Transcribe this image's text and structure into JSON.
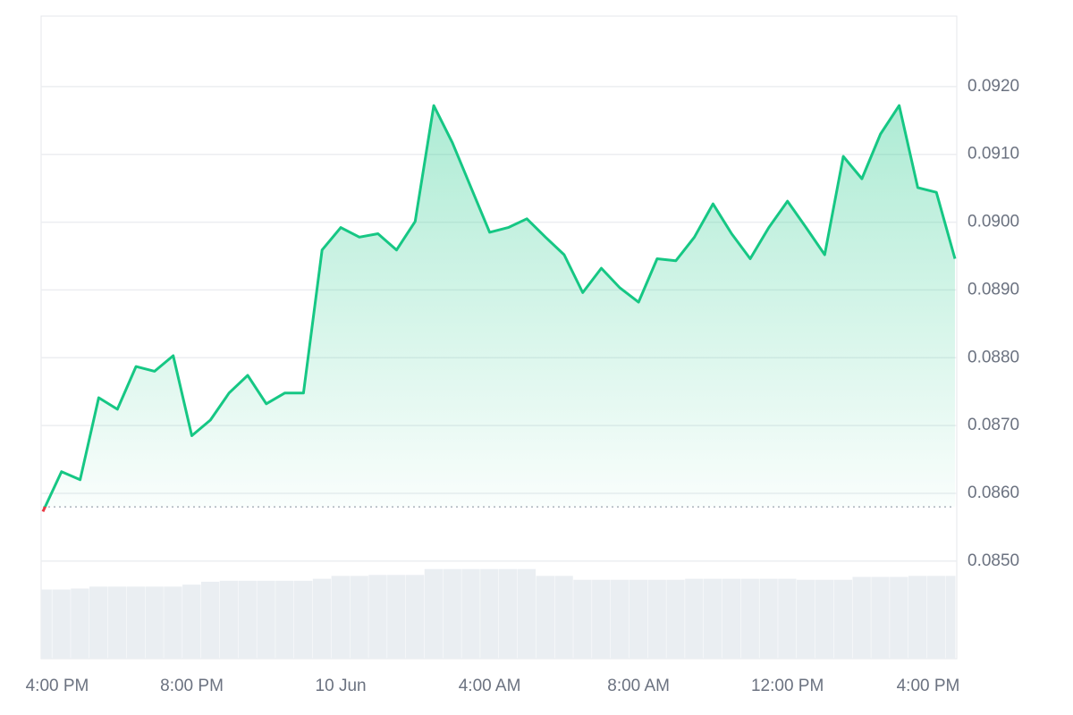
{
  "chart_data": {
    "type": "line",
    "categories": [
      "4:00 PM",
      null,
      null,
      null,
      null,
      null,
      null,
      null,
      "8:00 PM",
      null,
      null,
      null,
      null,
      null,
      null,
      null,
      "10 Jun",
      null,
      null,
      null,
      null,
      null,
      null,
      null,
      "4:00 AM",
      null,
      null,
      null,
      null,
      null,
      null,
      null,
      "8:00 AM",
      null,
      null,
      null,
      null,
      null,
      null,
      null,
      "12:00 PM",
      null,
      null,
      null,
      null,
      null,
      null,
      null,
      "4:00 PM",
      null
    ],
    "values": [
      0.08573,
      0.08632,
      0.0862,
      0.08741,
      0.08724,
      0.08787,
      0.0878,
      0.08803,
      0.08685,
      0.08708,
      0.08748,
      0.08774,
      0.08732,
      0.08748,
      0.08748,
      0.08959,
      0.08992,
      0.08978,
      0.08983,
      0.08959,
      0.09001,
      0.09172,
      0.09117,
      0.09051,
      0.08985,
      0.08992,
      0.09005,
      0.08978,
      0.08952,
      0.08896,
      0.08932,
      0.08903,
      0.08882,
      0.08946,
      0.08943,
      0.08978,
      0.09027,
      0.08983,
      0.08946,
      0.08992,
      0.09031,
      0.08992,
      0.08952,
      0.09097,
      0.09064,
      0.0913,
      0.09172,
      0.09051,
      0.09044,
      0.08946
    ],
    "color": "#16c784",
    "down_color": "#ea3943",
    "baseline": 0.0858,
    "ylim": [
      0.08356,
      0.09304
    ],
    "yticks": [
      {
        "value": 0.085,
        "label": "0.0850"
      },
      {
        "value": 0.086,
        "label": "0.0860"
      },
      {
        "value": 0.087,
        "label": "0.0870"
      },
      {
        "value": 0.088,
        "label": "0.0880"
      },
      {
        "value": 0.089,
        "label": "0.0890"
      },
      {
        "value": 0.09,
        "label": "0.0900"
      },
      {
        "value": 0.091,
        "label": "0.0910"
      },
      {
        "value": 0.092,
        "label": "0.0920"
      }
    ],
    "grid": true,
    "volume": {
      "color": "#eaeef2",
      "vlim": [
        0,
        100
      ],
      "values": [
        71,
        71,
        72,
        74,
        74,
        74,
        74,
        74,
        76,
        79,
        80,
        80,
        80,
        80,
        80,
        82,
        85,
        85,
        86,
        86,
        86,
        92,
        92,
        92,
        92,
        92,
        92,
        85,
        85,
        81,
        81,
        81,
        81,
        81,
        81,
        82,
        82,
        82,
        82,
        82,
        82,
        81,
        81,
        81,
        84,
        84,
        84,
        85,
        85,
        85
      ]
    }
  }
}
